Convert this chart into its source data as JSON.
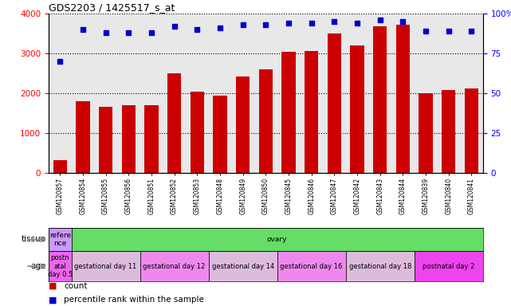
{
  "title": "GDS2203 / 1425517_s_at",
  "samples": [
    "GSM120857",
    "GSM120854",
    "GSM120855",
    "GSM120856",
    "GSM120851",
    "GSM120852",
    "GSM120853",
    "GSM120848",
    "GSM120849",
    "GSM120850",
    "GSM120845",
    "GSM120846",
    "GSM120847",
    "GSM120842",
    "GSM120843",
    "GSM120844",
    "GSM120839",
    "GSM120840",
    "GSM120841"
  ],
  "counts": [
    320,
    1810,
    1660,
    1700,
    1700,
    2500,
    2040,
    1950,
    2430,
    2610,
    3050,
    3060,
    3510,
    3200,
    3680,
    3720,
    2010,
    2080,
    2130
  ],
  "percentiles": [
    70,
    90,
    88,
    88,
    88,
    92,
    90,
    91,
    93,
    93,
    94,
    94,
    95,
    94,
    96,
    95,
    89,
    89,
    89
  ],
  "bar_color": "#cc0000",
  "dot_color": "#0000cc",
  "ylim_left": [
    0,
    4000
  ],
  "ylim_right": [
    0,
    100
  ],
  "yticks_left": [
    0,
    1000,
    2000,
    3000,
    4000
  ],
  "yticks_right": [
    0,
    25,
    50,
    75,
    100
  ],
  "background_color": "#e8e8e8",
  "tissue_row": {
    "label": "tissue",
    "cells": [
      {
        "text": "refere\nnce",
        "color": "#cc99ff",
        "start": 0,
        "end": 1
      },
      {
        "text": "ovary",
        "color": "#66dd66",
        "start": 1,
        "end": 19
      }
    ]
  },
  "age_row": {
    "label": "age",
    "cells": [
      {
        "text": "postn\natal\nday 0.5",
        "color": "#ee66ee",
        "start": 0,
        "end": 1
      },
      {
        "text": "gestational day 11",
        "color": "#ddbbdd",
        "start": 1,
        "end": 4
      },
      {
        "text": "gestational day 12",
        "color": "#ee88ee",
        "start": 4,
        "end": 7
      },
      {
        "text": "gestational day 14",
        "color": "#ddbbdd",
        "start": 7,
        "end": 10
      },
      {
        "text": "gestational day 16",
        "color": "#ee88ee",
        "start": 10,
        "end": 13
      },
      {
        "text": "gestational day 18",
        "color": "#ddbbdd",
        "start": 13,
        "end": 16
      },
      {
        "text": "postnatal day 2",
        "color": "#ee44ee",
        "start": 16,
        "end": 19
      }
    ]
  },
  "legend": [
    {
      "color": "#cc0000",
      "label": "count"
    },
    {
      "color": "#0000cc",
      "label": "percentile rank within the sample"
    }
  ]
}
